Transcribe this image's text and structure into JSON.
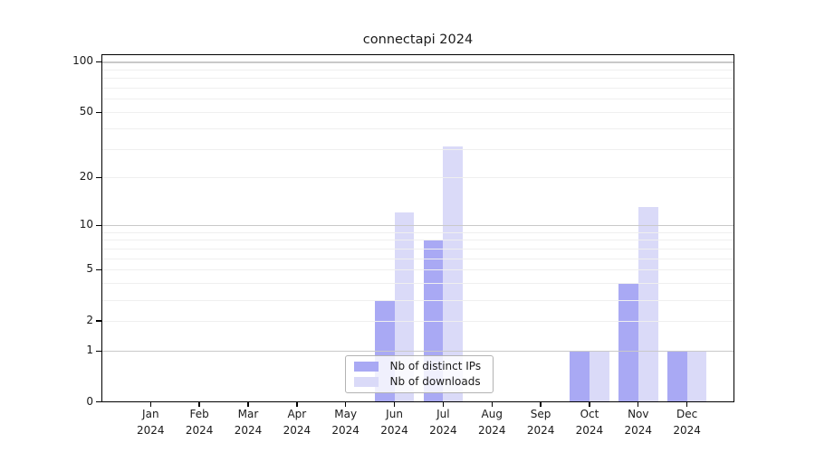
{
  "chart_data": {
    "type": "bar",
    "title": "connectapi 2024",
    "categories": [
      "Jan 2024",
      "Feb 2024",
      "Mar 2024",
      "Apr 2024",
      "May 2024",
      "Jun 2024",
      "Jul 2024",
      "Aug 2024",
      "Sep 2024",
      "Oct 2024",
      "Nov 2024",
      "Dec 2024"
    ],
    "series": [
      {
        "name": "Nb of distinct IPs",
        "color": "#a9a9f4",
        "values": [
          0,
          0,
          0,
          0,
          0,
          3,
          8,
          0,
          0,
          1,
          4,
          1
        ]
      },
      {
        "name": "Nb of downloads",
        "color": "#dadaf8",
        "values": [
          0,
          0,
          0,
          0,
          0,
          12,
          31,
          0,
          0,
          1,
          13,
          1
        ]
      }
    ],
    "xlabel": "",
    "ylabel": "",
    "y_axis": {
      "scale": "log1p",
      "tick_values": [
        0,
        1,
        2,
        5,
        10,
        20,
        50,
        100
      ],
      "major_gridlines": [
        1,
        10,
        100
      ],
      "minor_gridlines": [
        2,
        3,
        4,
        5,
        6,
        7,
        8,
        9,
        20,
        30,
        40,
        50,
        60,
        70,
        80,
        90
      ],
      "ylim": [
        0,
        110
      ]
    },
    "grid": "on",
    "grid_above_bars": true,
    "legend_position": "bottom-center",
    "colors": {
      "bar_distinct_ips": "#a9a9f4",
      "bar_downloads": "#dadaf8",
      "major_grid": "#c9c9c9",
      "minor_grid": "#efefef",
      "axis": "#000000",
      "text": "#1a1a1a",
      "legend_border": "#b3b3b3"
    }
  }
}
